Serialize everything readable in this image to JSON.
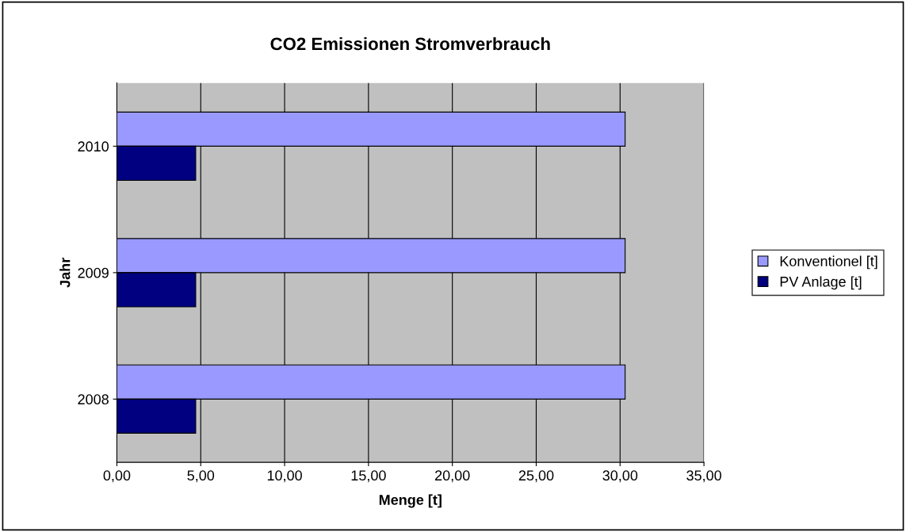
{
  "chart_data": {
    "type": "bar",
    "orientation": "horizontal",
    "title": "CO2 Emissionen Stromverbrauch",
    "xlabel": "Menge [t]",
    "ylabel": "Jahr",
    "categories": [
      "2010",
      "2009",
      "2008"
    ],
    "series": [
      {
        "name": "Konventionel [t]",
        "color": "#9999ff",
        "values": [
          30.3,
          30.3,
          30.3
        ]
      },
      {
        "name": "PV Anlage [t]",
        "color": "#000080",
        "values": [
          4.7,
          4.7,
          4.7
        ]
      }
    ],
    "xlim": [
      0,
      35
    ],
    "xticks": [
      {
        "value": 0,
        "label": "0,00"
      },
      {
        "value": 5,
        "label": "5,00"
      },
      {
        "value": 10,
        "label": "10,00"
      },
      {
        "value": 15,
        "label": "15,00"
      },
      {
        "value": 20,
        "label": "20,00"
      },
      {
        "value": 25,
        "label": "25,00"
      },
      {
        "value": 30,
        "label": "30,00"
      },
      {
        "value": 35,
        "label": "35,00"
      }
    ],
    "grid": "x",
    "legend": "right"
  }
}
